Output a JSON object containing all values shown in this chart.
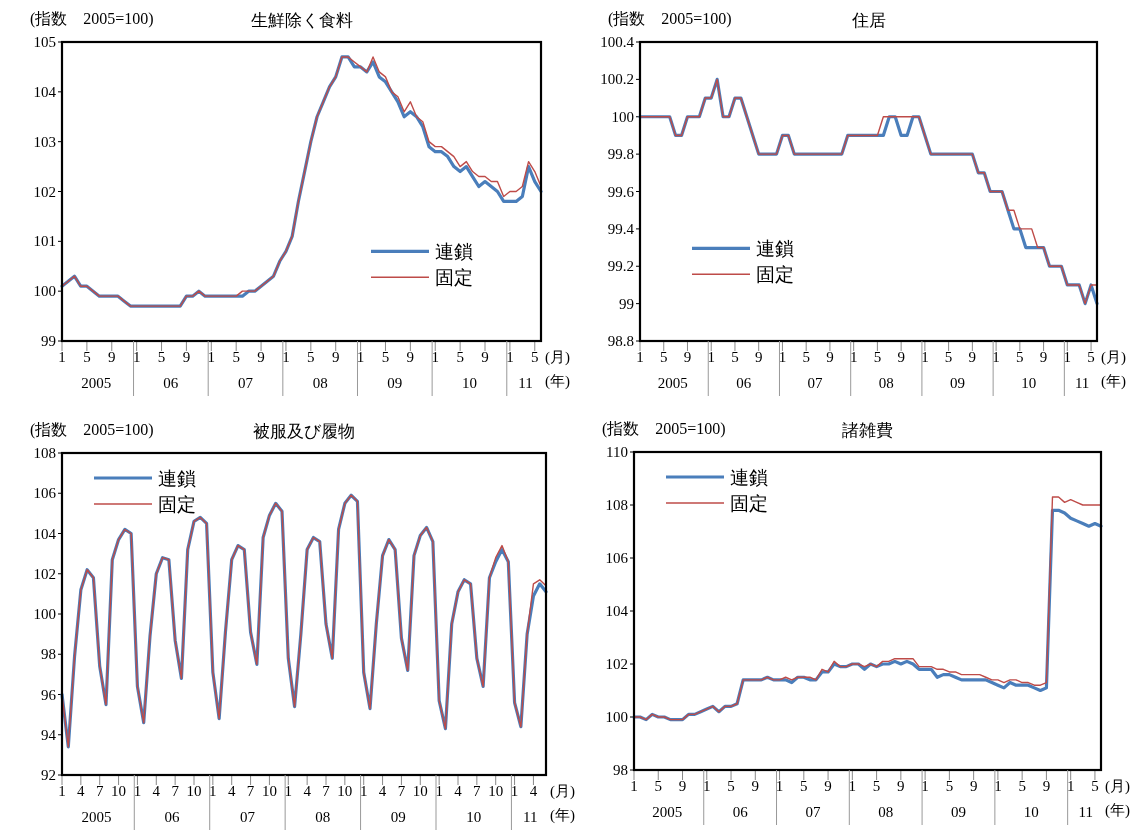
{
  "chart_data": [
    {
      "type": "line",
      "title": "生鮮除く食料",
      "ylabel": "(指数　2005=100)",
      "legend": "right",
      "x": [
        "2005-01",
        "2005-02",
        "2005-03",
        "2005-04",
        "2005-05",
        "2005-06",
        "2005-07",
        "2005-08",
        "2005-09",
        "2005-10",
        "2005-11",
        "2005-12",
        "2006-01",
        "2006-02",
        "2006-03",
        "2006-04",
        "2006-05",
        "2006-06",
        "2006-07",
        "2006-08",
        "2006-09",
        "2006-10",
        "2006-11",
        "2006-12",
        "2007-01",
        "2007-02",
        "2007-03",
        "2007-04",
        "2007-05",
        "2007-06",
        "2007-07",
        "2007-08",
        "2007-09",
        "2007-10",
        "2007-11",
        "2007-12",
        "2008-01",
        "2008-02",
        "2008-03",
        "2008-04",
        "2008-05",
        "2008-06",
        "2008-07",
        "2008-08",
        "2008-09",
        "2008-10",
        "2008-11",
        "2008-12",
        "2009-01",
        "2009-02",
        "2009-03",
        "2009-04",
        "2009-05",
        "2009-06",
        "2009-07",
        "2009-08",
        "2009-09",
        "2009-10",
        "2009-11",
        "2009-12",
        "2010-01",
        "2010-02",
        "2010-03",
        "2010-04",
        "2010-05",
        "2010-06",
        "2010-07",
        "2010-08",
        "2010-09",
        "2010-10",
        "2010-11",
        "2010-12",
        "2011-01",
        "2011-02",
        "2011-03",
        "2011-04",
        "2011-05",
        "2011-06"
      ],
      "xlim": [
        "2005-01",
        "2011-06"
      ],
      "xticks": [
        {
          "value": "2005-01",
          "label": "1"
        },
        {
          "value": "2005-05",
          "label": "5"
        },
        {
          "value": "2005-09",
          "label": "9"
        },
        {
          "value": "2006-01",
          "label": "1"
        },
        {
          "value": "2006-05",
          "label": "5"
        },
        {
          "value": "2006-09",
          "label": "9"
        },
        {
          "value": "2007-01",
          "label": "1"
        },
        {
          "value": "2007-05",
          "label": "5"
        },
        {
          "value": "2007-09",
          "label": "9"
        },
        {
          "value": "2008-01",
          "label": "1"
        },
        {
          "value": "2008-05",
          "label": "5"
        },
        {
          "value": "2008-09",
          "label": "9"
        },
        {
          "value": "2009-01",
          "label": "1"
        },
        {
          "value": "2009-05",
          "label": "5"
        },
        {
          "value": "2009-09",
          "label": "9"
        },
        {
          "value": "2010-01",
          "label": "1"
        },
        {
          "value": "2010-05",
          "label": "5"
        },
        {
          "value": "2010-09",
          "label": "9"
        },
        {
          "value": "2011-01",
          "label": "1"
        },
        {
          "value": "2011-05",
          "label": "5"
        }
      ],
      "ylim": [
        99,
        105
      ],
      "yticks": [
        99,
        100,
        101,
        102,
        103,
        104,
        105
      ],
      "series": [
        {
          "name": "連鎖",
          "color": "#4a7ebb",
          "values": [
            100.1,
            100.2,
            100.3,
            100.1,
            100.1,
            100.0,
            99.9,
            99.9,
            99.9,
            99.9,
            99.8,
            99.7,
            99.7,
            99.7,
            99.7,
            99.7,
            99.7,
            99.7,
            99.7,
            99.7,
            99.9,
            99.9,
            100.0,
            99.9,
            99.9,
            99.9,
            99.9,
            99.9,
            99.9,
            99.9,
            100.0,
            100.0,
            100.1,
            100.2,
            100.3,
            100.6,
            100.8,
            101.1,
            101.8,
            102.4,
            103.0,
            103.5,
            103.8,
            104.1,
            104.3,
            104.7,
            104.7,
            104.5,
            104.5,
            104.4,
            104.6,
            104.3,
            104.2,
            104.0,
            103.8,
            103.5,
            103.6,
            103.5,
            103.3,
            102.9,
            102.8,
            102.8,
            102.7,
            102.5,
            102.4,
            102.5,
            102.3,
            102.1,
            102.2,
            102.1,
            102.0,
            101.8,
            101.8,
            101.8,
            101.9,
            102.5,
            102.2,
            102.0
          ]
        },
        {
          "name": "固定",
          "color": "#be4b48",
          "values": [
            100.1,
            100.2,
            100.3,
            100.1,
            100.1,
            100.0,
            99.9,
            99.9,
            99.9,
            99.9,
            99.8,
            99.7,
            99.7,
            99.7,
            99.7,
            99.7,
            99.7,
            99.7,
            99.7,
            99.7,
            99.9,
            99.9,
            100.0,
            99.9,
            99.9,
            99.9,
            99.9,
            99.9,
            99.9,
            100.0,
            100.0,
            100.0,
            100.1,
            100.2,
            100.3,
            100.6,
            100.8,
            101.1,
            101.8,
            102.4,
            103.0,
            103.5,
            103.8,
            104.1,
            104.3,
            104.7,
            104.7,
            104.6,
            104.5,
            104.4,
            104.7,
            104.4,
            104.3,
            104.0,
            103.9,
            103.6,
            103.8,
            103.5,
            103.4,
            103.0,
            102.9,
            102.9,
            102.8,
            102.7,
            102.5,
            102.6,
            102.4,
            102.3,
            102.3,
            102.2,
            102.2,
            101.9,
            102.0,
            102.0,
            102.1,
            102.6,
            102.4,
            102.1
          ]
        }
      ],
      "annotations": [
        "2005",
        "06",
        "07",
        "08",
        "09",
        "10",
        "11",
        "(月)",
        "(年)"
      ]
    },
    {
      "type": "line",
      "title": "住居",
      "ylabel": "(指数　2005=100)",
      "legend": "bottom left",
      "x": [
        "2005-01",
        "2005-02",
        "2005-03",
        "2005-04",
        "2005-05",
        "2005-06",
        "2005-07",
        "2005-08",
        "2005-09",
        "2005-10",
        "2005-11",
        "2005-12",
        "2006-01",
        "2006-02",
        "2006-03",
        "2006-04",
        "2006-05",
        "2006-06",
        "2006-07",
        "2006-08",
        "2006-09",
        "2006-10",
        "2006-11",
        "2006-12",
        "2007-01",
        "2007-02",
        "2007-03",
        "2007-04",
        "2007-05",
        "2007-06",
        "2007-07",
        "2007-08",
        "2007-09",
        "2007-10",
        "2007-11",
        "2007-12",
        "2008-01",
        "2008-02",
        "2008-03",
        "2008-04",
        "2008-05",
        "2008-06",
        "2008-07",
        "2008-08",
        "2008-09",
        "2008-10",
        "2008-11",
        "2008-12",
        "2009-01",
        "2009-02",
        "2009-03",
        "2009-04",
        "2009-05",
        "2009-06",
        "2009-07",
        "2009-08",
        "2009-09",
        "2009-10",
        "2009-11",
        "2009-12",
        "2010-01",
        "2010-02",
        "2010-03",
        "2010-04",
        "2010-05",
        "2010-06",
        "2010-07",
        "2010-08",
        "2010-09",
        "2010-10",
        "2010-11",
        "2010-12",
        "2011-01",
        "2011-02",
        "2011-03",
        "2011-04",
        "2011-05",
        "2011-06"
      ],
      "xlim": [
        "2005-01",
        "2011-06"
      ],
      "xticks": [
        {
          "value": "2005-01",
          "label": "1"
        },
        {
          "value": "2005-05",
          "label": "5"
        },
        {
          "value": "2005-09",
          "label": "9"
        },
        {
          "value": "2006-01",
          "label": "1"
        },
        {
          "value": "2006-05",
          "label": "5"
        },
        {
          "value": "2006-09",
          "label": "9"
        },
        {
          "value": "2007-01",
          "label": "1"
        },
        {
          "value": "2007-05",
          "label": "5"
        },
        {
          "value": "2007-09",
          "label": "9"
        },
        {
          "value": "2008-01",
          "label": "1"
        },
        {
          "value": "2008-05",
          "label": "5"
        },
        {
          "value": "2008-09",
          "label": "9"
        },
        {
          "value": "2009-01",
          "label": "1"
        },
        {
          "value": "2009-05",
          "label": "5"
        },
        {
          "value": "2009-09",
          "label": "9"
        },
        {
          "value": "2010-01",
          "label": "1"
        },
        {
          "value": "2010-05",
          "label": "5"
        },
        {
          "value": "2010-09",
          "label": "9"
        },
        {
          "value": "2011-01",
          "label": "1"
        },
        {
          "value": "2011-05",
          "label": "5"
        }
      ],
      "ylim": [
        98.8,
        100.4
      ],
      "yticks": [
        98.8,
        99,
        99.2,
        99.4,
        99.6,
        99.8,
        100,
        100.2,
        100.4
      ],
      "series": [
        {
          "name": "連鎖",
          "color": "#4a7ebb",
          "values": [
            100.0,
            100.0,
            100.0,
            100.0,
            100.0,
            100.0,
            99.9,
            99.9,
            100.0,
            100.0,
            100.0,
            100.1,
            100.1,
            100.2,
            100.0,
            100.0,
            100.1,
            100.1,
            100.0,
            99.9,
            99.8,
            99.8,
            99.8,
            99.8,
            99.9,
            99.9,
            99.8,
            99.8,
            99.8,
            99.8,
            99.8,
            99.8,
            99.8,
            99.8,
            99.8,
            99.9,
            99.9,
            99.9,
            99.9,
            99.9,
            99.9,
            99.9,
            100.0,
            100.0,
            99.9,
            99.9,
            100.0,
            100.0,
            99.9,
            99.8,
            99.8,
            99.8,
            99.8,
            99.8,
            99.8,
            99.8,
            99.8,
            99.7,
            99.7,
            99.6,
            99.6,
            99.6,
            99.5,
            99.4,
            99.4,
            99.3,
            99.3,
            99.3,
            99.3,
            99.2,
            99.2,
            99.2,
            99.1,
            99.1,
            99.1,
            99.0,
            99.1,
            99.0
          ]
        },
        {
          "name": "固定",
          "color": "#be4b48",
          "values": [
            100.0,
            100.0,
            100.0,
            100.0,
            100.0,
            100.0,
            99.9,
            99.9,
            100.0,
            100.0,
            100.0,
            100.1,
            100.1,
            100.2,
            100.0,
            100.0,
            100.1,
            100.1,
            100.0,
            99.9,
            99.8,
            99.8,
            99.8,
            99.8,
            99.9,
            99.9,
            99.8,
            99.8,
            99.8,
            99.8,
            99.8,
            99.8,
            99.8,
            99.8,
            99.8,
            99.9,
            99.9,
            99.9,
            99.9,
            99.9,
            99.9,
            100.0,
            100.0,
            100.0,
            100.0,
            100.0,
            100.0,
            100.0,
            99.9,
            99.8,
            99.8,
            99.8,
            99.8,
            99.8,
            99.8,
            99.8,
            99.8,
            99.7,
            99.7,
            99.6,
            99.6,
            99.6,
            99.5,
            99.5,
            99.4,
            99.4,
            99.4,
            99.3,
            99.3,
            99.2,
            99.2,
            99.2,
            99.1,
            99.1,
            99.1,
            99.0,
            99.1,
            99.1
          ]
        }
      ],
      "annotations": [
        "2005",
        "06",
        "07",
        "08",
        "09",
        "10",
        "11",
        "(月)",
        "(年)"
      ]
    },
    {
      "type": "line",
      "title": "被服及び履物",
      "ylabel": "(指数　2005=100)",
      "legend": "top left",
      "x": [
        "2005-01",
        "2005-02",
        "2005-03",
        "2005-04",
        "2005-05",
        "2005-06",
        "2005-07",
        "2005-08",
        "2005-09",
        "2005-10",
        "2005-11",
        "2005-12",
        "2006-01",
        "2006-02",
        "2006-03",
        "2006-04",
        "2006-05",
        "2006-06",
        "2006-07",
        "2006-08",
        "2006-09",
        "2006-10",
        "2006-11",
        "2006-12",
        "2007-01",
        "2007-02",
        "2007-03",
        "2007-04",
        "2007-05",
        "2007-06",
        "2007-07",
        "2007-08",
        "2007-09",
        "2007-10",
        "2007-11",
        "2007-12",
        "2008-01",
        "2008-02",
        "2008-03",
        "2008-04",
        "2008-05",
        "2008-06",
        "2008-07",
        "2008-08",
        "2008-09",
        "2008-10",
        "2008-11",
        "2008-12",
        "2009-01",
        "2009-02",
        "2009-03",
        "2009-04",
        "2009-05",
        "2009-06",
        "2009-07",
        "2009-08",
        "2009-09",
        "2009-10",
        "2009-11",
        "2009-12",
        "2010-01",
        "2010-02",
        "2010-03",
        "2010-04",
        "2010-05",
        "2010-06",
        "2010-07",
        "2010-08",
        "2010-09",
        "2010-10",
        "2010-11",
        "2010-12",
        "2011-01",
        "2011-02",
        "2011-03",
        "2011-04",
        "2011-05",
        "2011-06"
      ],
      "xlim": [
        "2005-01",
        "2011-06"
      ],
      "xticks": [
        {
          "value": "2005-01",
          "label": "1"
        },
        {
          "value": "2005-04",
          "label": "4"
        },
        {
          "value": "2005-07",
          "label": "7"
        },
        {
          "value": "2005-10",
          "label": "10"
        },
        {
          "value": "2006-01",
          "label": "1"
        },
        {
          "value": "2006-04",
          "label": "4"
        },
        {
          "value": "2006-07",
          "label": "7"
        },
        {
          "value": "2006-10",
          "label": "10"
        },
        {
          "value": "2007-01",
          "label": "1"
        },
        {
          "value": "2007-04",
          "label": "4"
        },
        {
          "value": "2007-07",
          "label": "7"
        },
        {
          "value": "2007-10",
          "label": "10"
        },
        {
          "value": "2008-01",
          "label": "1"
        },
        {
          "value": "2008-04",
          "label": "4"
        },
        {
          "value": "2008-07",
          "label": "7"
        },
        {
          "value": "2008-10",
          "label": "10"
        },
        {
          "value": "2009-01",
          "label": "1"
        },
        {
          "value": "2009-04",
          "label": "4"
        },
        {
          "value": "2009-07",
          "label": "7"
        },
        {
          "value": "2009-10",
          "label": "10"
        },
        {
          "value": "2010-01",
          "label": "1"
        },
        {
          "value": "2010-04",
          "label": "4"
        },
        {
          "value": "2010-07",
          "label": "7"
        },
        {
          "value": "2010-10",
          "label": "10"
        },
        {
          "value": "2011-01",
          "label": "1"
        },
        {
          "value": "2011-04",
          "label": "4"
        }
      ],
      "ylim": [
        92,
        108
      ],
      "yticks": [
        92,
        94,
        96,
        98,
        100,
        102,
        104,
        106,
        108
      ],
      "series": [
        {
          "name": "連鎖",
          "color": "#4a7ebb",
          "values": [
            96.0,
            93.4,
            97.9,
            101.2,
            102.2,
            101.8,
            97.4,
            95.5,
            102.7,
            103.7,
            104.2,
            104.0,
            96.4,
            94.6,
            98.9,
            102.0,
            102.8,
            102.7,
            98.7,
            96.8,
            103.2,
            104.6,
            104.8,
            104.5,
            97.1,
            94.8,
            99.1,
            102.7,
            103.4,
            103.2,
            99.1,
            97.5,
            103.8,
            104.9,
            105.5,
            105.1,
            97.8,
            95.4,
            99.0,
            103.2,
            103.8,
            103.6,
            99.5,
            97.8,
            104.2,
            105.5,
            105.9,
            105.6,
            97.1,
            95.3,
            99.5,
            102.9,
            103.7,
            103.2,
            98.8,
            97.2,
            102.9,
            103.9,
            104.3,
            103.6,
            95.7,
            94.3,
            99.5,
            101.1,
            101.7,
            101.5,
            97.8,
            96.4,
            101.8,
            102.6,
            103.2,
            102.6,
            95.6,
            94.4,
            99.0,
            100.9,
            101.5,
            101.1
          ]
        },
        {
          "name": "固定",
          "color": "#be4b48",
          "values": [
            96.0,
            93.4,
            97.9,
            101.2,
            102.2,
            101.8,
            97.4,
            95.5,
            102.7,
            103.7,
            104.2,
            104.0,
            96.4,
            94.6,
            98.9,
            102.0,
            102.8,
            102.7,
            98.7,
            96.8,
            103.2,
            104.6,
            104.8,
            104.5,
            97.1,
            94.8,
            99.1,
            102.7,
            103.4,
            103.2,
            99.1,
            97.5,
            103.8,
            104.9,
            105.5,
            105.1,
            97.8,
            95.4,
            99.0,
            103.2,
            103.8,
            103.6,
            99.5,
            97.8,
            104.2,
            105.5,
            105.9,
            105.6,
            97.1,
            95.3,
            99.5,
            102.9,
            103.7,
            103.2,
            98.8,
            97.2,
            102.9,
            103.9,
            104.3,
            103.6,
            95.7,
            94.3,
            99.5,
            101.1,
            101.7,
            101.5,
            97.8,
            96.4,
            101.8,
            102.8,
            103.4,
            102.6,
            95.6,
            94.4,
            99.0,
            101.5,
            101.7,
            101.4
          ]
        }
      ],
      "annotations": [
        "2005",
        "06",
        "07",
        "08",
        "09",
        "10",
        "11",
        "(月)",
        "(年)"
      ]
    },
    {
      "type": "line",
      "title": "諸雑費",
      "ylabel": "(指数　2005=100)",
      "legend": "top left",
      "x": [
        "2005-01",
        "2005-02",
        "2005-03",
        "2005-04",
        "2005-05",
        "2005-06",
        "2005-07",
        "2005-08",
        "2005-09",
        "2005-10",
        "2005-11",
        "2005-12",
        "2006-01",
        "2006-02",
        "2006-03",
        "2006-04",
        "2006-05",
        "2006-06",
        "2006-07",
        "2006-08",
        "2006-09",
        "2006-10",
        "2006-11",
        "2006-12",
        "2007-01",
        "2007-02",
        "2007-03",
        "2007-04",
        "2007-05",
        "2007-06",
        "2007-07",
        "2007-08",
        "2007-09",
        "2007-10",
        "2007-11",
        "2007-12",
        "2008-01",
        "2008-02",
        "2008-03",
        "2008-04",
        "2008-05",
        "2008-06",
        "2008-07",
        "2008-08",
        "2008-09",
        "2008-10",
        "2008-11",
        "2008-12",
        "2009-01",
        "2009-02",
        "2009-03",
        "2009-04",
        "2009-05",
        "2009-06",
        "2009-07",
        "2009-08",
        "2009-09",
        "2009-10",
        "2009-11",
        "2009-12",
        "2010-01",
        "2010-02",
        "2010-03",
        "2010-04",
        "2010-05",
        "2010-06",
        "2010-07",
        "2010-08",
        "2010-09",
        "2010-10",
        "2010-11",
        "2010-12",
        "2011-01",
        "2011-02",
        "2011-03",
        "2011-04",
        "2011-05",
        "2011-06"
      ],
      "xlim": [
        "2005-01",
        "2011-06"
      ],
      "xticks": [
        {
          "value": "2005-01",
          "label": "1"
        },
        {
          "value": "2005-05",
          "label": "5"
        },
        {
          "value": "2005-09",
          "label": "9"
        },
        {
          "value": "2006-01",
          "label": "1"
        },
        {
          "value": "2006-05",
          "label": "5"
        },
        {
          "value": "2006-09",
          "label": "9"
        },
        {
          "value": "2007-01",
          "label": "1"
        },
        {
          "value": "2007-05",
          "label": "5"
        },
        {
          "value": "2007-09",
          "label": "9"
        },
        {
          "value": "2008-01",
          "label": "1"
        },
        {
          "value": "2008-05",
          "label": "5"
        },
        {
          "value": "2008-09",
          "label": "9"
        },
        {
          "value": "2009-01",
          "label": "1"
        },
        {
          "value": "2009-05",
          "label": "5"
        },
        {
          "value": "2009-09",
          "label": "9"
        },
        {
          "value": "2010-01",
          "label": "1"
        },
        {
          "value": "2010-05",
          "label": "5"
        },
        {
          "value": "2010-09",
          "label": "9"
        },
        {
          "value": "2011-01",
          "label": "1"
        },
        {
          "value": "2011-05",
          "label": "5"
        }
      ],
      "ylim": [
        98,
        110
      ],
      "yticks": [
        98,
        100,
        102,
        104,
        106,
        108,
        110
      ],
      "series": [
        {
          "name": "連鎖",
          "color": "#4a7ebb",
          "values": [
            100.0,
            100.0,
            99.9,
            100.1,
            100.0,
            100.0,
            99.9,
            99.9,
            99.9,
            100.1,
            100.1,
            100.2,
            100.3,
            100.4,
            100.2,
            100.4,
            100.4,
            100.5,
            101.4,
            101.4,
            101.4,
            101.4,
            101.5,
            101.4,
            101.4,
            101.4,
            101.3,
            101.5,
            101.5,
            101.4,
            101.4,
            101.7,
            101.7,
            102.0,
            101.9,
            101.9,
            102.0,
            102.0,
            101.8,
            102.0,
            101.9,
            102.0,
            102.0,
            102.1,
            102.0,
            102.1,
            102.0,
            101.8,
            101.8,
            101.8,
            101.5,
            101.6,
            101.6,
            101.5,
            101.4,
            101.4,
            101.4,
            101.4,
            101.4,
            101.3,
            101.2,
            101.1,
            101.3,
            101.2,
            101.2,
            101.2,
            101.1,
            101.0,
            101.1,
            107.8,
            107.8,
            107.7,
            107.5,
            107.4,
            107.3,
            107.2,
            107.3,
            107.2
          ]
        },
        {
          "name": "固定",
          "color": "#be4b48",
          "values": [
            100.0,
            100.0,
            99.9,
            100.1,
            100.0,
            100.0,
            99.9,
            99.9,
            99.9,
            100.1,
            100.1,
            100.2,
            100.3,
            100.4,
            100.2,
            100.4,
            100.4,
            100.5,
            101.4,
            101.4,
            101.4,
            101.4,
            101.5,
            101.4,
            101.4,
            101.5,
            101.4,
            101.5,
            101.5,
            101.5,
            101.4,
            101.8,
            101.7,
            102.1,
            101.9,
            101.9,
            102.0,
            102.0,
            101.9,
            102.0,
            101.9,
            102.1,
            102.1,
            102.2,
            102.2,
            102.2,
            102.2,
            101.9,
            101.9,
            101.9,
            101.8,
            101.8,
            101.7,
            101.7,
            101.6,
            101.6,
            101.6,
            101.6,
            101.5,
            101.4,
            101.4,
            101.3,
            101.4,
            101.4,
            101.3,
            101.3,
            101.2,
            101.2,
            101.3,
            108.3,
            108.3,
            108.1,
            108.2,
            108.1,
            108.0,
            108.0,
            108.0,
            108.0
          ]
        }
      ],
      "annotations": [
        "2005",
        "06",
        "07",
        "08",
        "09",
        "10",
        "11",
        "(月)",
        "(年)"
      ]
    }
  ]
}
